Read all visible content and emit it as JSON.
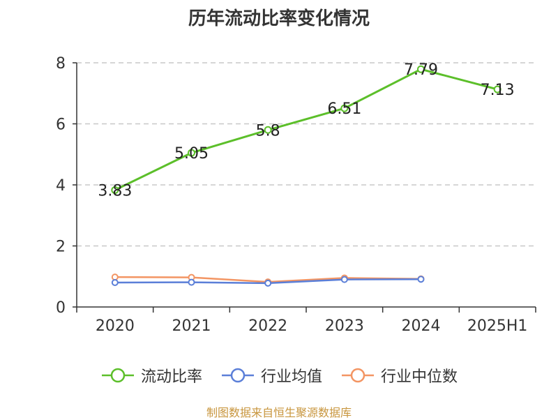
{
  "chart_data": {
    "type": "line",
    "title": "历年流动比率变化情况",
    "categories": [
      "2020",
      "2021",
      "2022",
      "2023",
      "2024",
      "2025H1"
    ],
    "series": [
      {
        "name": "流动比率",
        "color": "#5cbf2a",
        "values": [
          3.83,
          5.05,
          5.8,
          6.51,
          7.79,
          7.13
        ],
        "show_labels": true
      },
      {
        "name": "行业均值",
        "color": "#5b7fd8",
        "values": [
          0.8,
          0.81,
          0.78,
          0.9,
          0.91,
          null
        ],
        "show_labels": false
      },
      {
        "name": "行业中位数",
        "color": "#f39563",
        "values": [
          0.98,
          0.97,
          0.82,
          0.95,
          0.92,
          null
        ],
        "show_labels": false
      }
    ],
    "y_ticks": [
      "0",
      "2",
      "4",
      "6",
      "8"
    ],
    "ylim": [
      0,
      8
    ],
    "grid": true,
    "legend_position": "bottom"
  },
  "footer": {
    "source": "制图数据来自恒生聚源数据库"
  }
}
